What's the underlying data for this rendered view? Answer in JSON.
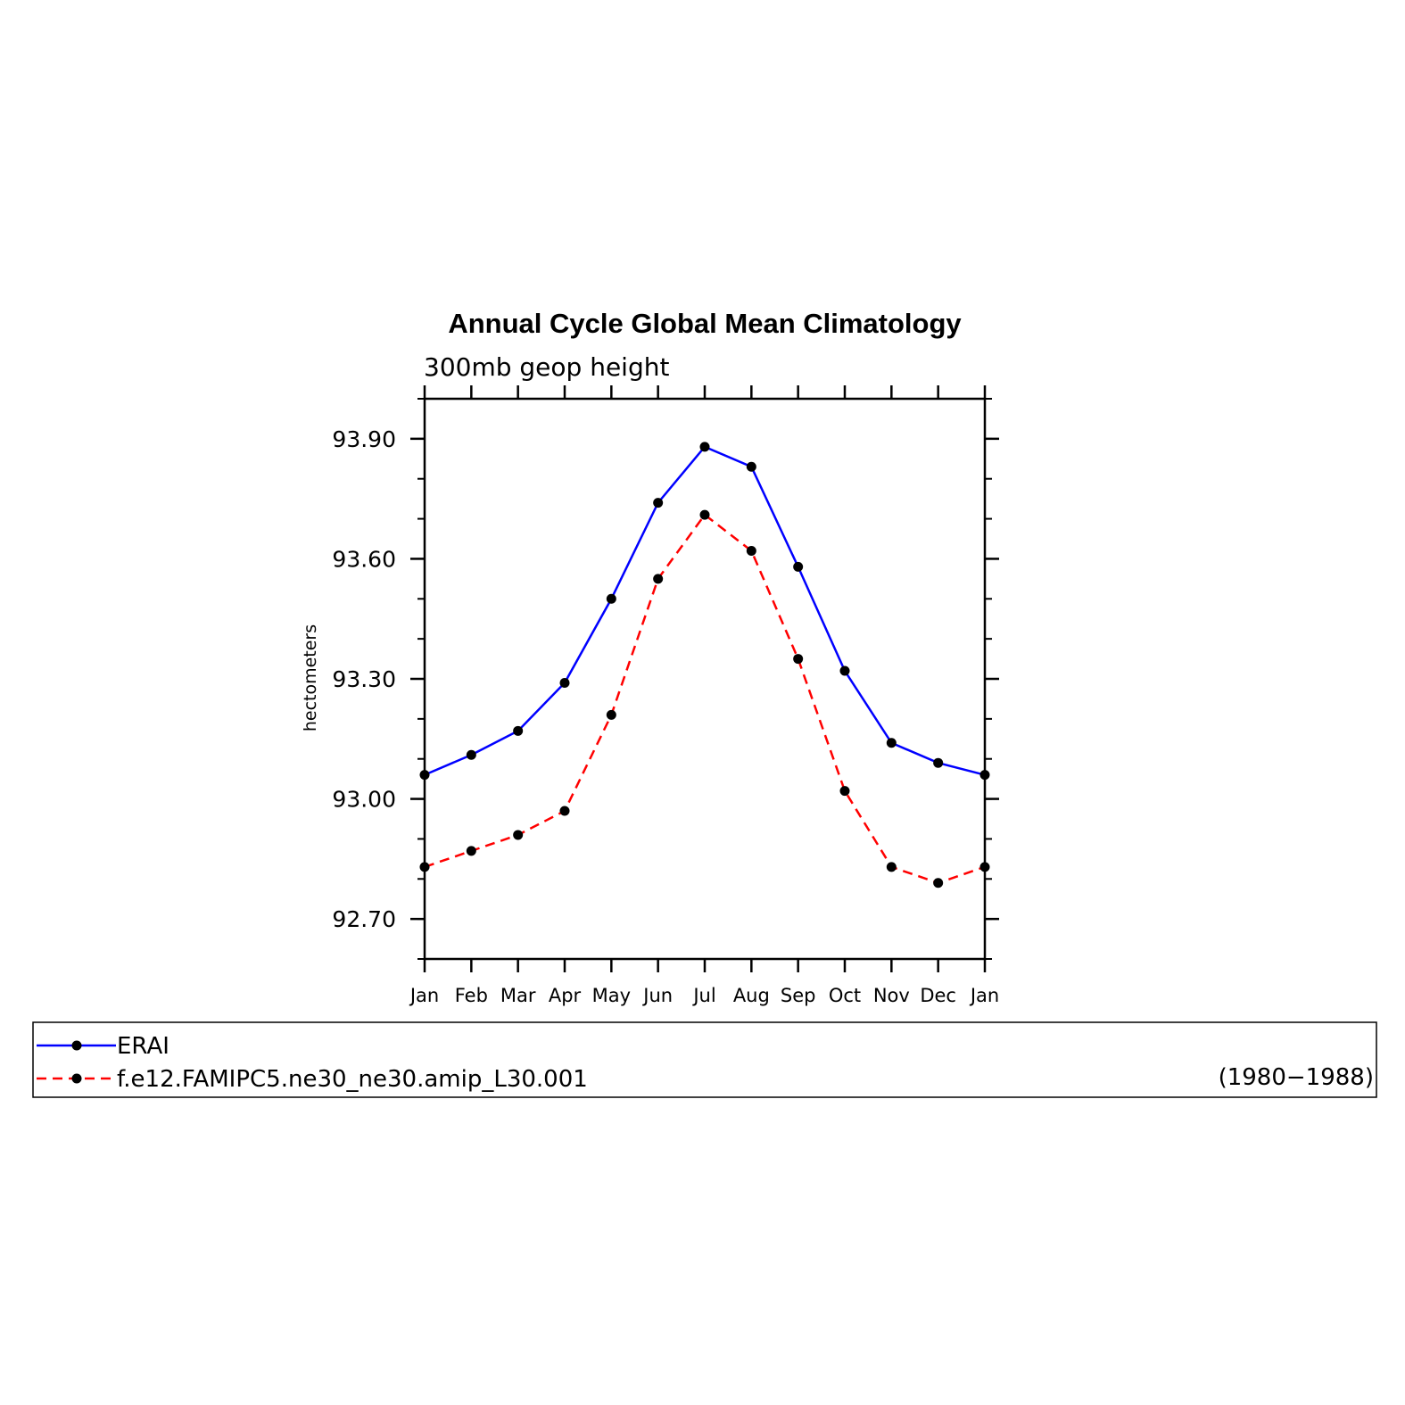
{
  "chart_data": {
    "type": "line",
    "title": "Annual Cycle Global Mean Climatology",
    "subtitle": "300mb geop height",
    "ylabel": "hectometers",
    "xlabel": "",
    "categories": [
      "Jan",
      "Feb",
      "Mar",
      "Apr",
      "May",
      "Jun",
      "Jul",
      "Aug",
      "Sep",
      "Oct",
      "Nov",
      "Dec",
      "Jan"
    ],
    "ylim": [
      92.6,
      94.0
    ],
    "yticks": [
      {
        "value": 92.7,
        "label": "92.70"
      },
      {
        "value": 93.0,
        "label": "93.00"
      },
      {
        "value": 93.3,
        "label": "93.30"
      },
      {
        "value": 93.6,
        "label": "93.60"
      },
      {
        "value": 93.9,
        "label": "93.90"
      }
    ],
    "series": [
      {
        "name": "ERAI",
        "color": "#0000ff",
        "dashed": false,
        "values": [
          93.06,
          93.11,
          93.17,
          93.29,
          93.5,
          93.74,
          93.88,
          93.83,
          93.58,
          93.32,
          93.14,
          93.09,
          93.06
        ]
      },
      {
        "name": "f.e12.FAMIPC5.ne30_ne30.amip_L30.001",
        "color": "#ff0000",
        "dashed": true,
        "values": [
          92.83,
          92.87,
          92.91,
          92.97,
          93.21,
          93.55,
          93.71,
          93.62,
          93.35,
          93.02,
          92.83,
          92.79,
          92.83
        ]
      }
    ],
    "legend": {
      "placement": "bottom",
      "note": "(1980−1988)"
    },
    "marker_color": "#000000",
    "grid": false
  }
}
